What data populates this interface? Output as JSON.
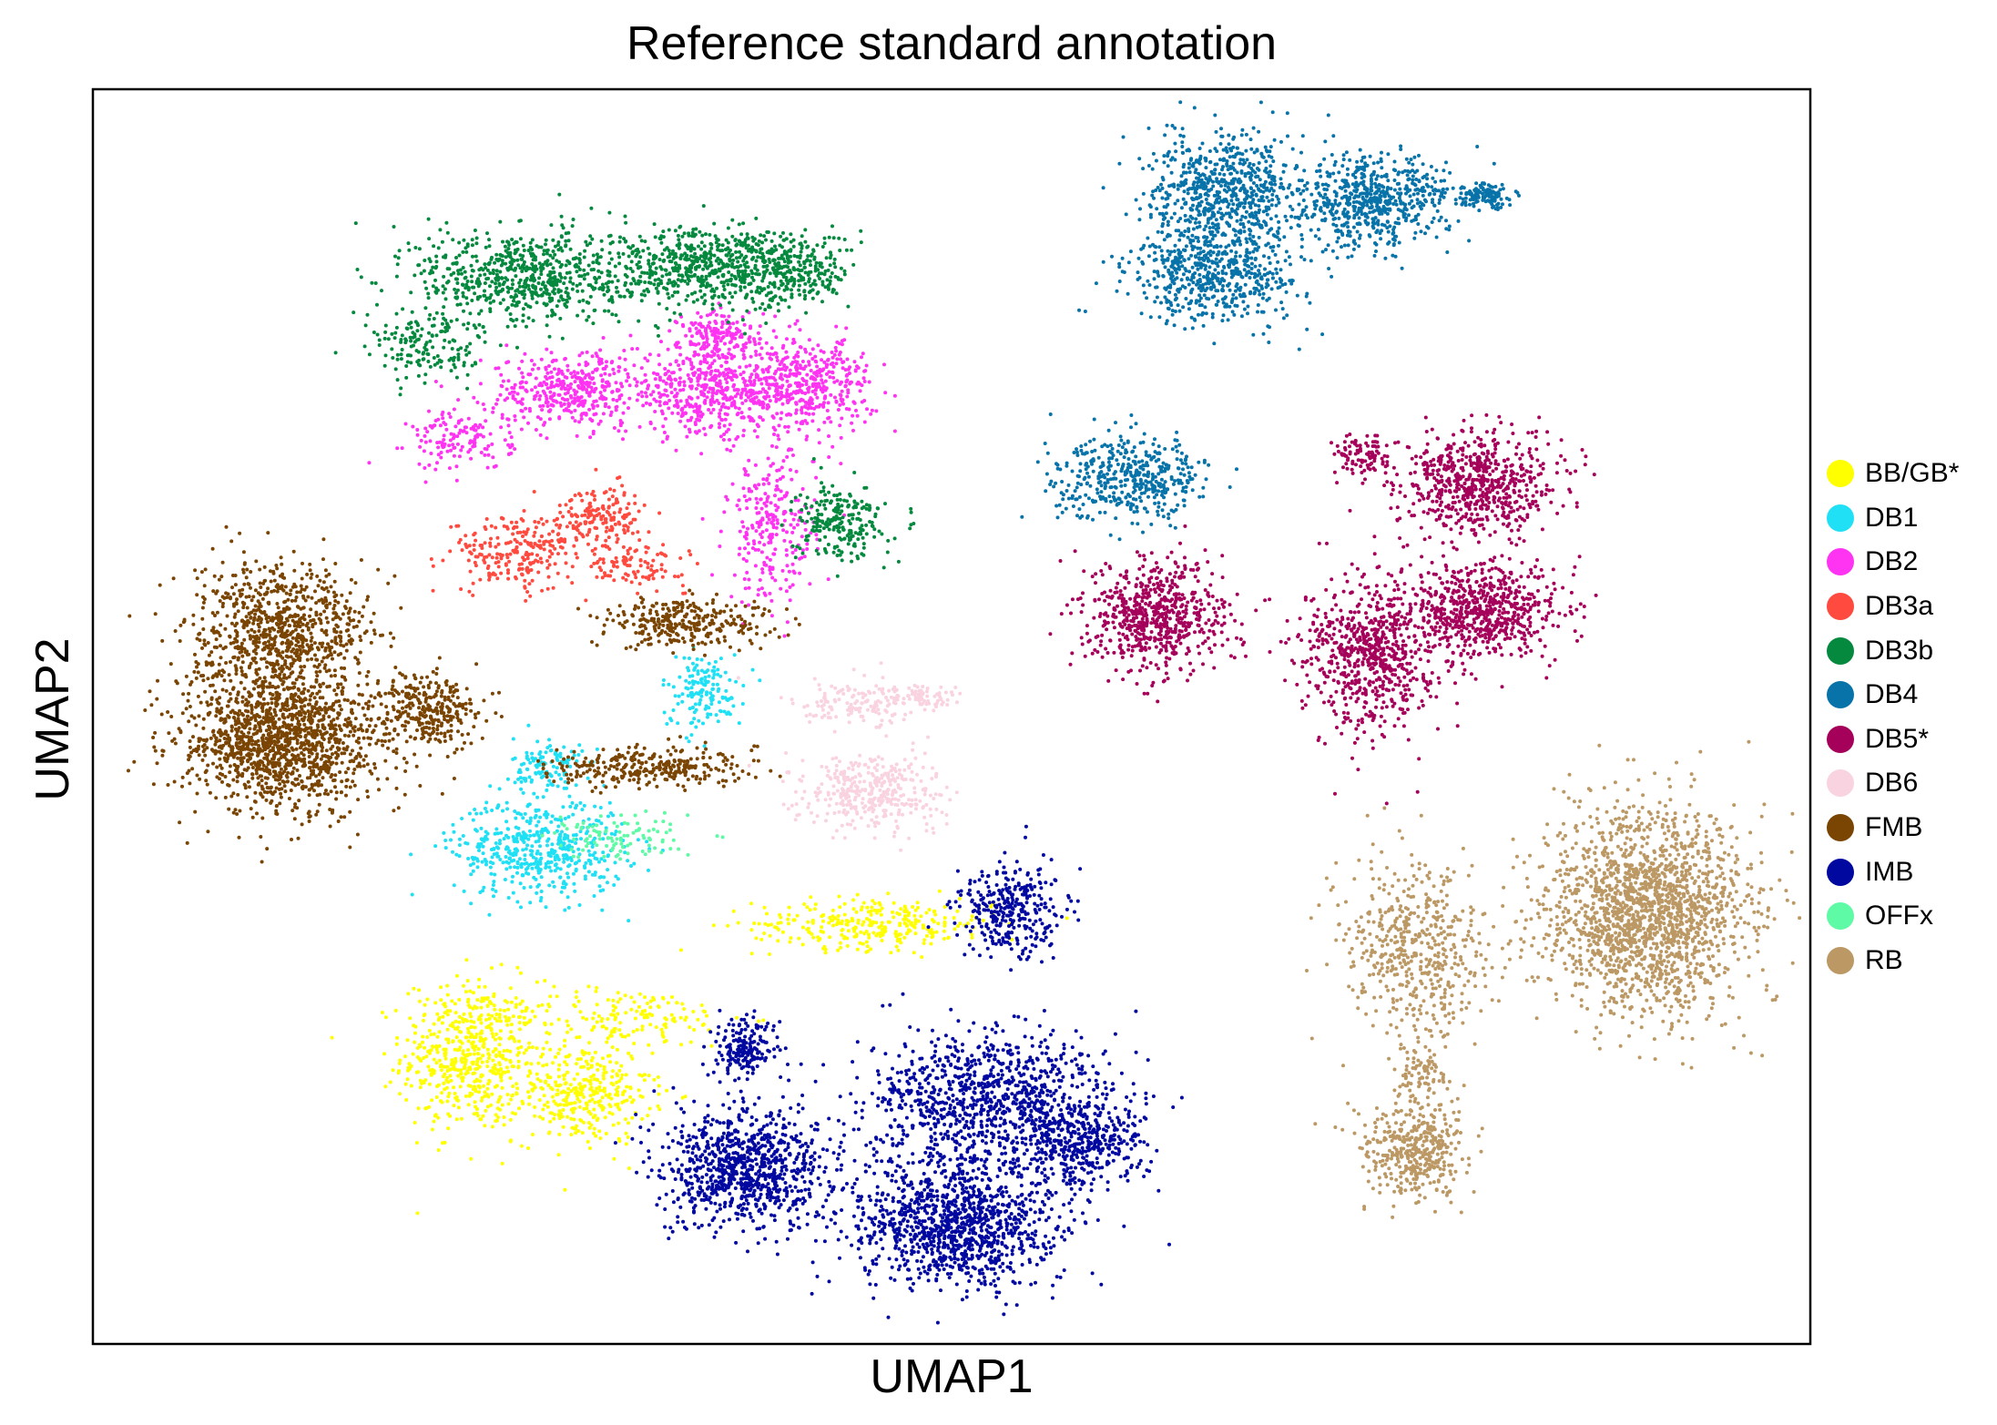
{
  "chart_data": {
    "type": "scatter",
    "title": "Reference standard annotation",
    "xlabel": "UMAP1",
    "ylabel": "UMAP2",
    "xlim": [
      0,
      100
    ],
    "ylim": [
      0,
      100
    ],
    "xticks": [],
    "yticks": [],
    "grid": false,
    "legend_position": "right-outside",
    "note": "Approximate cluster centers/spreads in normalized plot units (0-100).",
    "series": [
      {
        "name": "BB/GB*",
        "color": "#FFFF00",
        "clusters": [
          {
            "x": 22.0,
            "y": 23.0,
            "sx": 2.0,
            "sy": 3.0,
            "n": 550
          },
          {
            "x": 28.5,
            "y": 20.0,
            "sx": 2.0,
            "sy": 2.0,
            "n": 350
          },
          {
            "x": 31.0,
            "y": 26.0,
            "sx": 3.5,
            "sy": 1.2,
            "n": 160
          },
          {
            "x": 45.5,
            "y": 33.5,
            "sx": 3.5,
            "sy": 1.0,
            "n": 300
          }
        ]
      },
      {
        "name": "DB1",
        "color": "#1FE0F5",
        "clusters": [
          {
            "x": 26.0,
            "y": 39.5,
            "sx": 2.5,
            "sy": 2.0,
            "n": 500
          },
          {
            "x": 26.5,
            "y": 46.0,
            "sx": 1.0,
            "sy": 1.2,
            "n": 120
          },
          {
            "x": 35.5,
            "y": 52.0,
            "sx": 1.2,
            "sy": 1.5,
            "n": 150
          }
        ]
      },
      {
        "name": "DB2",
        "color": "#FF33F2",
        "clusters": [
          {
            "x": 28.0,
            "y": 76.0,
            "sx": 2.5,
            "sy": 1.5,
            "n": 420
          },
          {
            "x": 36.0,
            "y": 76.0,
            "sx": 2.5,
            "sy": 1.8,
            "n": 500
          },
          {
            "x": 41.5,
            "y": 76.5,
            "sx": 2.0,
            "sy": 1.8,
            "n": 420
          },
          {
            "x": 36.5,
            "y": 80.5,
            "sx": 1.2,
            "sy": 1.0,
            "n": 150
          },
          {
            "x": 21.5,
            "y": 72.0,
            "sx": 1.5,
            "sy": 1.2,
            "n": 140
          },
          {
            "x": 39.5,
            "y": 65.0,
            "sx": 1.3,
            "sy": 3.0,
            "n": 260
          }
        ]
      },
      {
        "name": "DB3a",
        "color": "#FF4A3F",
        "clusters": [
          {
            "x": 24.5,
            "y": 63.0,
            "sx": 1.8,
            "sy": 1.5,
            "n": 220
          },
          {
            "x": 29.5,
            "y": 66.0,
            "sx": 1.5,
            "sy": 1.2,
            "n": 180
          },
          {
            "x": 31.5,
            "y": 62.0,
            "sx": 1.5,
            "sy": 0.8,
            "n": 100
          }
        ]
      },
      {
        "name": "DB3b",
        "color": "#05893E",
        "clusters": [
          {
            "x": 25.0,
            "y": 85.0,
            "sx": 3.0,
            "sy": 2.0,
            "n": 650
          },
          {
            "x": 35.0,
            "y": 86.0,
            "sx": 3.0,
            "sy": 1.6,
            "n": 550
          },
          {
            "x": 40.5,
            "y": 85.5,
            "sx": 1.8,
            "sy": 1.5,
            "n": 300
          },
          {
            "x": 19.5,
            "y": 79.5,
            "sx": 1.8,
            "sy": 1.5,
            "n": 160
          },
          {
            "x": 43.5,
            "y": 65.5,
            "sx": 1.3,
            "sy": 1.5,
            "n": 230
          }
        ]
      },
      {
        "name": "DB4",
        "color": "#0873A9",
        "clusters": [
          {
            "x": 66.0,
            "y": 92.0,
            "sx": 2.2,
            "sy": 2.2,
            "n": 650
          },
          {
            "x": 65.5,
            "y": 85.5,
            "sx": 2.5,
            "sy": 2.0,
            "n": 600
          },
          {
            "x": 74.5,
            "y": 91.0,
            "sx": 2.2,
            "sy": 1.8,
            "n": 600
          },
          {
            "x": 81.0,
            "y": 91.5,
            "sx": 0.9,
            "sy": 0.5,
            "n": 120
          },
          {
            "x": 60.5,
            "y": 69.0,
            "sx": 2.2,
            "sy": 1.6,
            "n": 450
          }
        ]
      },
      {
        "name": "DB5*",
        "color": "#A5005A",
        "clusters": [
          {
            "x": 62.0,
            "y": 58.0,
            "sx": 2.0,
            "sy": 2.2,
            "n": 650
          },
          {
            "x": 74.5,
            "y": 55.0,
            "sx": 2.0,
            "sy": 3.0,
            "n": 700
          },
          {
            "x": 81.0,
            "y": 58.5,
            "sx": 2.3,
            "sy": 1.8,
            "n": 650
          },
          {
            "x": 80.5,
            "y": 68.5,
            "sx": 2.3,
            "sy": 2.0,
            "n": 650
          },
          {
            "x": 74.0,
            "y": 71.0,
            "sx": 0.8,
            "sy": 0.8,
            "n": 90
          }
        ]
      },
      {
        "name": "DB6",
        "color": "#FAD3E1",
        "clusters": [
          {
            "x": 45.5,
            "y": 44.0,
            "sx": 2.0,
            "sy": 1.5,
            "n": 380
          },
          {
            "x": 44.5,
            "y": 51.0,
            "sx": 2.0,
            "sy": 1.0,
            "n": 160
          },
          {
            "x": 48.5,
            "y": 51.5,
            "sx": 0.8,
            "sy": 0.5,
            "n": 60
          }
        ]
      },
      {
        "name": "FMB",
        "color": "#7A4402",
        "clusters": [
          {
            "x": 11.0,
            "y": 48.0,
            "sx": 3.0,
            "sy": 2.8,
            "n": 1400
          },
          {
            "x": 11.0,
            "y": 57.0,
            "sx": 2.5,
            "sy": 2.5,
            "n": 800
          },
          {
            "x": 19.5,
            "y": 50.5,
            "sx": 1.5,
            "sy": 1.5,
            "n": 300
          },
          {
            "x": 34.5,
            "y": 57.5,
            "sx": 2.5,
            "sy": 1.0,
            "n": 300
          },
          {
            "x": 32.5,
            "y": 46.0,
            "sx": 3.0,
            "sy": 0.8,
            "n": 300
          }
        ]
      },
      {
        "name": "IMB",
        "color": "#0008A0",
        "clusters": [
          {
            "x": 38.0,
            "y": 14.0,
            "sx": 2.5,
            "sy": 2.3,
            "n": 900
          },
          {
            "x": 50.0,
            "y": 9.5,
            "sx": 3.0,
            "sy": 2.5,
            "n": 1100
          },
          {
            "x": 52.0,
            "y": 19.0,
            "sx": 3.5,
            "sy": 3.0,
            "n": 1000
          },
          {
            "x": 57.5,
            "y": 16.0,
            "sx": 1.8,
            "sy": 2.0,
            "n": 400
          },
          {
            "x": 38.0,
            "y": 23.5,
            "sx": 1.0,
            "sy": 1.3,
            "n": 180
          },
          {
            "x": 53.5,
            "y": 34.5,
            "sx": 1.5,
            "sy": 1.8,
            "n": 320
          }
        ]
      },
      {
        "name": "OFFx",
        "color": "#5FFAA5",
        "clusters": [
          {
            "x": 30.5,
            "y": 40.5,
            "sx": 2.0,
            "sy": 1.0,
            "n": 100
          }
        ]
      },
      {
        "name": "RB",
        "color": "#BB9864",
        "clusters": [
          {
            "x": 90.5,
            "y": 34.5,
            "sx": 3.0,
            "sy": 4.0,
            "n": 1800
          },
          {
            "x": 77.0,
            "y": 31.5,
            "sx": 2.0,
            "sy": 3.5,
            "n": 500
          },
          {
            "x": 77.0,
            "y": 15.5,
            "sx": 1.5,
            "sy": 1.8,
            "n": 400
          },
          {
            "x": 77.5,
            "y": 22.0,
            "sx": 0.8,
            "sy": 1.5,
            "n": 90
          }
        ]
      }
    ]
  }
}
